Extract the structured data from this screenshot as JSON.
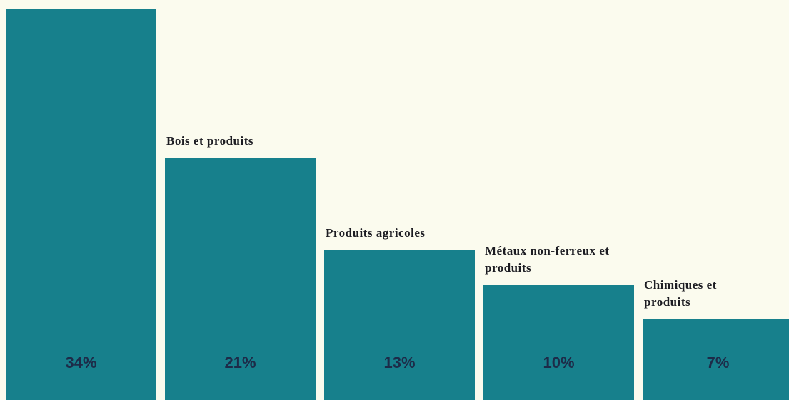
{
  "chart_data": {
    "type": "bar",
    "categories": [
      null,
      "Bois et produits",
      "Produits agricoles",
      "Métaux non-ferreux et produits",
      "Chimiques et produits"
    ],
    "values": [
      34,
      21,
      13,
      10,
      7
    ],
    "value_labels": [
      "34%",
      "21%",
      "13%",
      "10%",
      "7%"
    ],
    "color": "#17808c"
  }
}
